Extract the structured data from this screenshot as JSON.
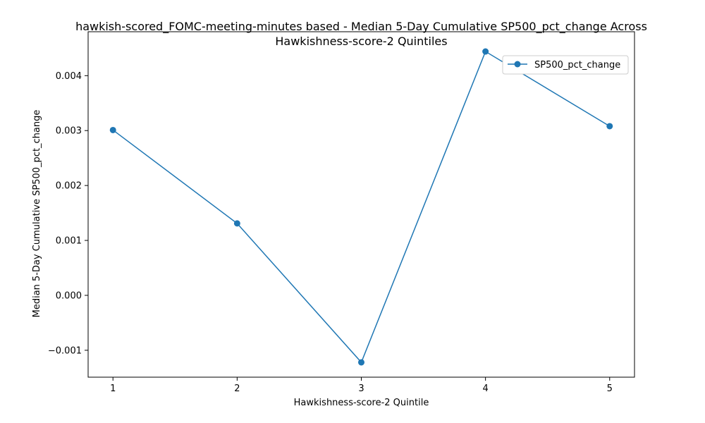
{
  "chart_data": {
    "type": "line",
    "title": "hawkish-scored_FOMC-meeting-minutes based - Median 5-Day Cumulative SP500_pct_change Across\nHawkishness-score-2 Quintiles",
    "title_lines": [
      "hawkish-scored_FOMC-meeting-minutes based - Median 5-Day Cumulative SP500_pct_change Across",
      "Hawkishness-score-2 Quintiles"
    ],
    "xlabel": "Hawkishness-score-2 Quintile",
    "ylabel": "Median 5-Day Cumulative SP500_pct_change",
    "x": [
      1,
      2,
      3,
      4,
      5
    ],
    "xticks": [
      "1",
      "2",
      "3",
      "4",
      "5"
    ],
    "xlim": [
      0.8,
      5.2
    ],
    "ylim": [
      -0.00149,
      0.0048
    ],
    "yticks": [
      -0.001,
      0.0,
      0.001,
      0.002,
      0.003,
      0.004
    ],
    "ytick_labels": [
      "−0.001",
      "0.000",
      "0.001",
      "0.002",
      "0.003",
      "0.004"
    ],
    "series": [
      {
        "name": "SP500_pct_change",
        "values": [
          0.00301,
          0.00131,
          -0.00122,
          0.00444,
          0.00308
        ],
        "color": "#1f77b4",
        "marker": "circle"
      }
    ],
    "grid": false,
    "legend_position": "top-right"
  }
}
